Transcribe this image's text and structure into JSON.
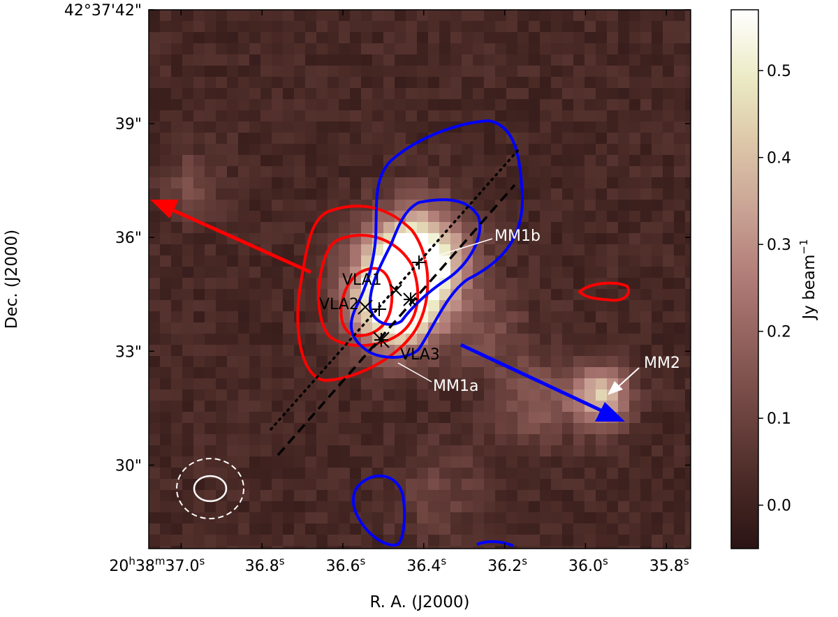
{
  "chart_data": {
    "type": "heatmap",
    "xlabel": "R. A. (J2000)",
    "ylabel": "Dec. (J2000)",
    "x_ticks": [
      {
        "value": 37.0,
        "label_main": "20",
        "sup_h": "h",
        "label_2": "38",
        "sup_m": "m",
        "label_3": "37.0",
        "sup_s": "s"
      },
      {
        "value": 36.8,
        "label_main": "36.8",
        "sup_s": "s"
      },
      {
        "value": 36.6,
        "label_main": "36.6",
        "sup_s": "s"
      },
      {
        "value": 36.4,
        "label_main": "36.4",
        "sup_s": "s"
      },
      {
        "value": 36.2,
        "label_main": "36.2",
        "sup_s": "s"
      },
      {
        "value": 36.0,
        "label_main": "36.0",
        "sup_s": "s"
      },
      {
        "value": 35.8,
        "label_main": "35.8",
        "sup_s": "s"
      }
    ],
    "y_ticks": [
      {
        "value": 42,
        "label": "42°37'42\""
      },
      {
        "value": 39,
        "label": "39\""
      },
      {
        "value": 36,
        "label": "36\""
      },
      {
        "value": 33,
        "label": "33\""
      },
      {
        "value": 30,
        "label": "30\""
      }
    ],
    "xlim": [
      37.08,
      35.74
    ],
    "ylim": [
      27.8,
      42.0
    ],
    "colorbar": {
      "label": "Jy beam",
      "label_sup": "−1",
      "range": [
        -0.05,
        0.57
      ],
      "ticks": [
        "0.5",
        "0.4",
        "0.3",
        "0.2",
        "0.1",
        "0.0"
      ],
      "tick_values": [
        0.5,
        0.4,
        0.3,
        0.2,
        0.1,
        0.0
      ],
      "colormap": [
        "#2a1414",
        "#4a2a26",
        "#6e4440",
        "#8f5f5a",
        "#b07b76",
        "#c9a294",
        "#dcc6a8",
        "#ecebc6",
        "#ffffff"
      ]
    },
    "emission_peaks": [
      {
        "ra": 36.45,
        "dec": 35.0,
        "peak": 0.52,
        "sigma_arcsec": 0.9
      },
      {
        "ra": 36.48,
        "dec": 34.0,
        "peak": 0.42,
        "sigma_arcsec": 0.8
      },
      {
        "ra": 36.4,
        "dec": 35.6,
        "peak": 0.35,
        "sigma_arcsec": 0.9
      },
      {
        "ra": 35.96,
        "dec": 31.8,
        "peak": 0.38,
        "sigma_arcsec": 0.55
      },
      {
        "ra": 36.12,
        "dec": 31.7,
        "peak": 0.14,
        "sigma_arcsec": 0.8
      },
      {
        "ra": 36.25,
        "dec": 33.5,
        "peak": 0.1,
        "sigma_arcsec": 0.8
      },
      {
        "ra": 36.98,
        "dec": 37.4,
        "peak": 0.1,
        "sigma_arcsec": 0.6
      },
      {
        "ra": 36.36,
        "dec": 29.3,
        "peak": 0.08,
        "sigma_arcsec": 0.9
      }
    ],
    "sources": [
      {
        "name": "VLA1",
        "ra": 36.45,
        "dec": 35.05,
        "marker": "x"
      },
      {
        "name": "VLA2",
        "ra": 36.48,
        "dec": 34.4,
        "marker": "x"
      },
      {
        "name": "VLA3",
        "ra": 36.48,
        "dec": 33.8,
        "marker": "x"
      },
      {
        "name": "MM1a",
        "ra": 36.48,
        "dec": 33.65,
        "marker": "+"
      },
      {
        "name": "MM1b",
        "ra": 36.39,
        "dec": 35.7,
        "marker": "+"
      },
      {
        "name": "MM2",
        "ra": 35.96,
        "dec": 31.8,
        "marker": "none"
      }
    ],
    "labels": [
      "VLA1",
      "VLA2",
      "VLA3",
      "MM1a",
      "MM1b",
      "MM2"
    ],
    "contour_colors": {
      "red": "#ff0000",
      "blue": "#0000ff"
    },
    "outflow_arrows": [
      {
        "color": "#ff0000",
        "from": [
          36.63,
          35.3
        ],
        "to": [
          37.08,
          37.5
        ]
      },
      {
        "color": "#0000ff",
        "from": [
          36.3,
          33.6
        ],
        "to": [
          35.9,
          31.5
        ]
      }
    ],
    "axis_lines": [
      {
        "style": "dotted",
        "from": [
          36.75,
          31.5
        ],
        "to": [
          36.17,
          38.7
        ]
      },
      {
        "style": "dashed",
        "from": [
          36.73,
          30.7
        ],
        "to": [
          36.17,
          37.8
        ]
      }
    ],
    "beams": [
      {
        "style": "dashed",
        "color": "#ffffff",
        "center": [
          36.88,
          29.8
        ],
        "size_arcsec": [
          1.8,
          1.6
        ]
      },
      {
        "style": "solid",
        "color": "#ffffff",
        "center": [
          36.88,
          29.8
        ],
        "size_arcsec": [
          0.9,
          0.7
        ]
      }
    ]
  }
}
